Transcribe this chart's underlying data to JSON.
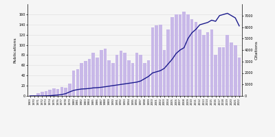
{
  "years": [
    1969,
    1970,
    1971,
    1972,
    1973,
    1974,
    1975,
    1976,
    1977,
    1978,
    1979,
    1980,
    1981,
    1982,
    1983,
    1984,
    1985,
    1986,
    1987,
    1988,
    1989,
    1990,
    1991,
    1992,
    1993,
    1994,
    1995,
    1996,
    1997,
    1998,
    1999,
    2000,
    2001,
    2002,
    2003,
    2004,
    2005,
    2006,
    2007,
    2008,
    2009,
    2010,
    2011,
    2012,
    2013,
    2014,
    2015,
    2016,
    2017,
    2018,
    2019,
    2020,
    2021,
    2022
  ],
  "publications": [
    1,
    2,
    5,
    8,
    10,
    12,
    15,
    14,
    18,
    16,
    24,
    50,
    52,
    65,
    68,
    72,
    85,
    75,
    90,
    93,
    70,
    65,
    80,
    88,
    85,
    70,
    65,
    85,
    80,
    65,
    70,
    135,
    138,
    140,
    90,
    130,
    155,
    160,
    160,
    165,
    160,
    150,
    145,
    130,
    120,
    125,
    130,
    80,
    95,
    95,
    120,
    105,
    100,
    75
  ],
  "citations": [
    0,
    0,
    0,
    0,
    10,
    20,
    50,
    80,
    120,
    200,
    350,
    480,
    550,
    600,
    620,
    650,
    700,
    720,
    750,
    800,
    850,
    900,
    950,
    1000,
    1050,
    1100,
    1150,
    1200,
    1300,
    1500,
    1700,
    2000,
    2100,
    2200,
    2400,
    2800,
    3200,
    3700,
    4000,
    4200,
    5000,
    5500,
    5800,
    6200,
    6300,
    6400,
    6600,
    6500,
    7000,
    7100,
    7200,
    7000,
    6800,
    6100
  ],
  "bar_color": "#c8b8e8",
  "line_color": "#1a1a8c",
  "left_ylabel": "Publications",
  "right_ylabel": "Citations",
  "ylim_left": [
    0,
    180
  ],
  "ylim_right": [
    0,
    8000
  ],
  "yticks_left": [
    0,
    20,
    40,
    60,
    80,
    100,
    120,
    140,
    160
  ],
  "yticks_right": [
    0,
    1000,
    2000,
    3000,
    4000,
    5000,
    6000,
    7000
  ],
  "legend_pub": "Publications",
  "legend_cit": "Citations",
  "grid_color": "#dddddd",
  "background_color": "#f5f5f5"
}
